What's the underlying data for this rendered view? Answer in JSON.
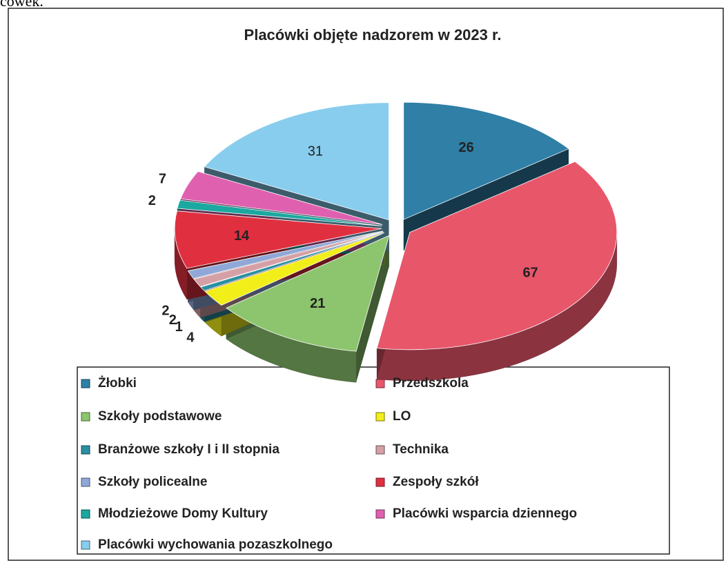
{
  "page_text": "cówek.",
  "chart_data": {
    "type": "pie3d",
    "title": "Placówki objęte nadzorem w 2023 r.",
    "categories": [
      "Żłobki",
      "Przedszkola",
      "Szkoły podstawowe",
      "LO",
      "Branżowe szkoły I i II stopnia",
      "Technika",
      "Szkoły policealne",
      "Zespoły szkół",
      "Młodzieżowe Domy Kultury",
      "Placówki wsparcia dziennego",
      "Placówki wychowania pozaszkolnego"
    ],
    "values": [
      26,
      67,
      21,
      4,
      1,
      2,
      2,
      14,
      2,
      7,
      31
    ],
    "colors": [
      "#2f7fa6",
      "#e8566a",
      "#8cc56e",
      "#f2ee1a",
      "#2a8fa0",
      "#d4a0a6",
      "#8fa8d8",
      "#e03040",
      "#1aa8a0",
      "#e060b0",
      "#88cdee"
    ]
  }
}
